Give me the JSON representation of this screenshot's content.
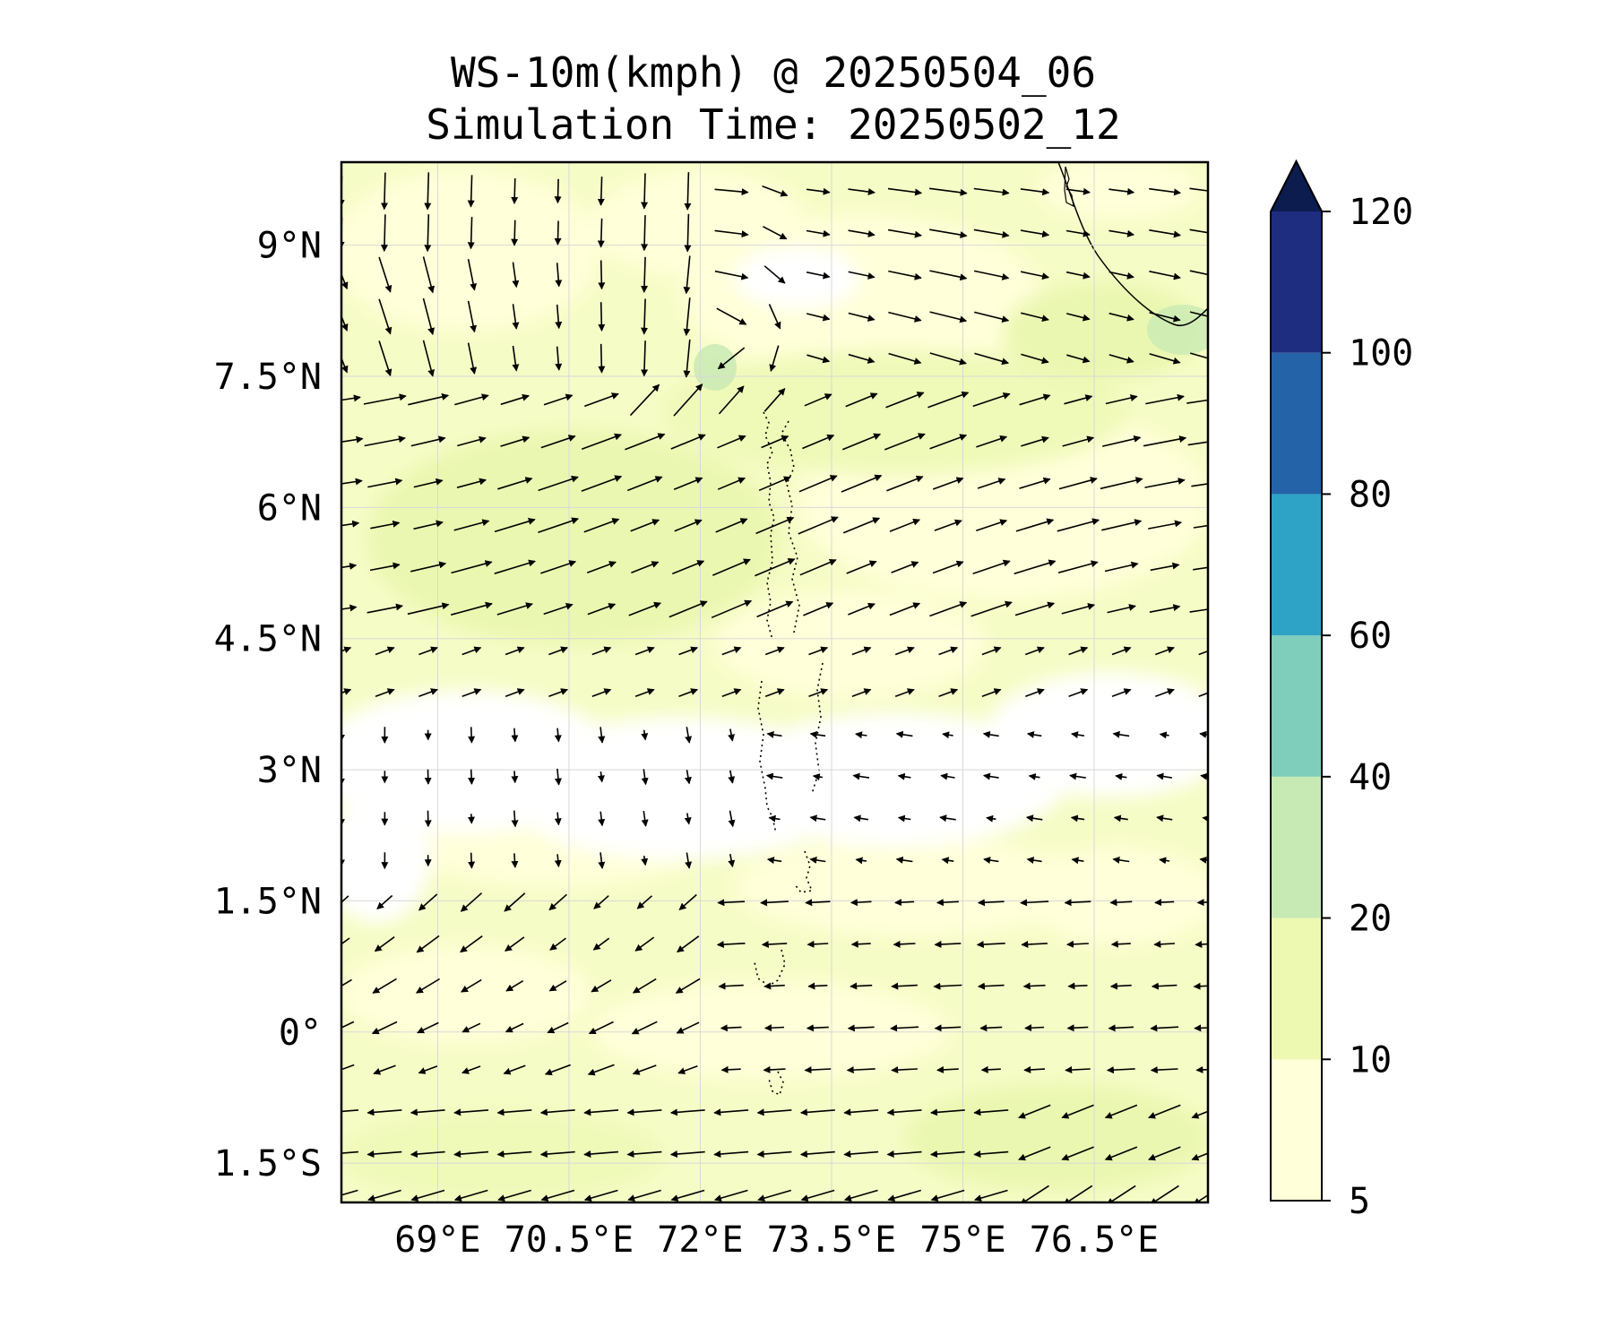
{
  "title": {
    "line1": "WS-10m(kmph) @ 20250504_06",
    "line2": "Simulation Time: 20250502_12"
  },
  "map": {
    "lon_range": [
      67.9,
      77.8
    ],
    "lat_range": [
      -1.95,
      9.95
    ],
    "x_ticks": [
      {
        "value": 69,
        "label": "69°E"
      },
      {
        "value": 70.5,
        "label": "70.5°E"
      },
      {
        "value": 72,
        "label": "72°E"
      },
      {
        "value": 73.5,
        "label": "73.5°E"
      },
      {
        "value": 75,
        "label": "75°E"
      },
      {
        "value": 76.5,
        "label": "76.5°E"
      }
    ],
    "y_ticks": [
      {
        "value": 9,
        "label": "9°N"
      },
      {
        "value": 7.5,
        "label": "7.5°N"
      },
      {
        "value": 6,
        "label": "6°N"
      },
      {
        "value": 4.5,
        "label": "4.5°N"
      },
      {
        "value": 3,
        "label": "3°N"
      },
      {
        "value": 1.5,
        "label": "1.5°N"
      },
      {
        "value": 0,
        "label": "0°"
      },
      {
        "value": -1.5,
        "label": "1.5°S"
      }
    ],
    "gridlines": true
  },
  "colorbar": {
    "levels": [
      5,
      10,
      20,
      40,
      60,
      80,
      100,
      120
    ],
    "colors": [
      "#ffffd9",
      "#edf8b1",
      "#c7e9b4",
      "#7fcdbb",
      "#2fa3c6",
      "#2563a8",
      "#1e2d80"
    ],
    "extend_color": "#0c1c4e",
    "extend": "max",
    "labels": [
      "5",
      "10",
      "20",
      "40",
      "60",
      "80",
      "100",
      "120"
    ]
  },
  "colors": {
    "calm": "#ffffff",
    "light": "#ffffd9",
    "moderate": "#edf8b1",
    "fresh": "#c7e9b4"
  }
}
